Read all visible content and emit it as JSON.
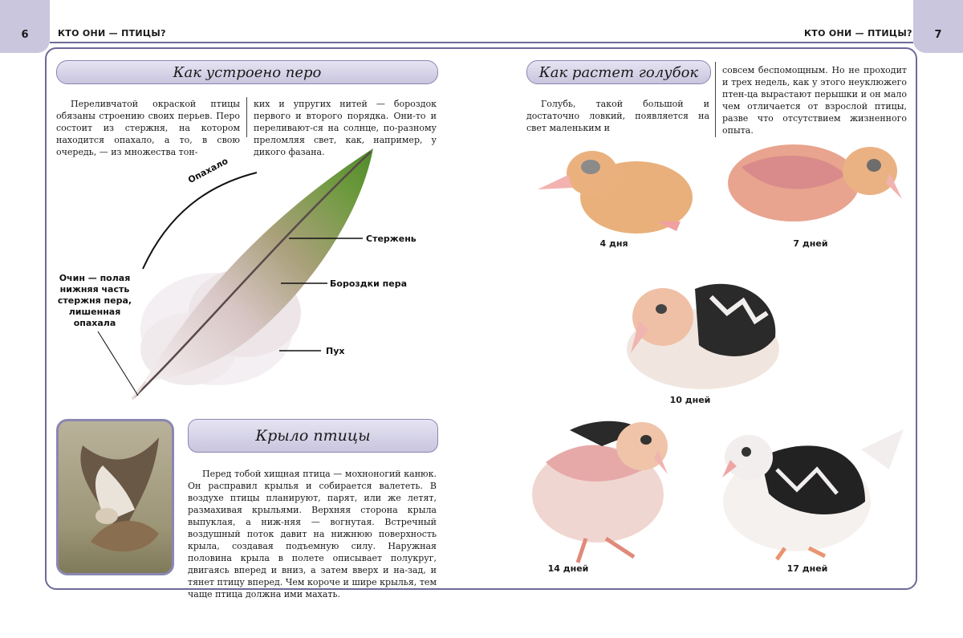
{
  "header": {
    "left_page_number": "6",
    "right_page_number": "7",
    "left_running_title": "КТО ОНИ — ПТИЦЫ?",
    "right_running_title": "КТО ОНИ — ПТИЦЫ?"
  },
  "feather_section": {
    "title": "Как устроено перо",
    "col1": "Переливчатой окраской птицы обязаны строению своих перьев. Перо состоит из стержня, на котором находится опахало, а то, в свою очередь, — из множества тон-",
    "col2": "ких и упругих нитей — бороздок первого и второго порядка. Они-то и переливают-ся на солнце, по-разному преломляя свет, как, например, у дикого фазана.",
    "labels": {
      "vane": "Опахало",
      "shaft": "Стержень",
      "barbs": "Бороздки пера",
      "down": "Пух",
      "calamus_1": "Очин — полая",
      "calamus_2": "нижняя часть",
      "calamus_3": "стержня пера,",
      "calamus_4": "лишенная",
      "calamus_5": "опахала"
    }
  },
  "wing_section": {
    "title": "Крыло птицы",
    "text": "Перед тобой хищная птица — мохноногий канюк. Он расправил крылья и собирается валететь. В воздухе птицы планируют, парят, или же летят, размахивая крыльями. Верхняя сторона крыла выпуклая, а ниж-няя — вогнутая. Встречный воздушный поток давит на нижнюю поверхность крыла, создавая подъемную силу. Наружная половина крыла в полете описывает полукруг, двигаясь вперед и вниз, а затем вверх и на-зад, и тянет птицу вперед. Чем короче и шире крылья, тем чаще птица должна ими махать."
  },
  "pigeon_section": {
    "title": "Как растет голубок",
    "col1": "Голубь, такой большой и достаточно ловкий, появляется на свет маленьким и",
    "col2": "совсем беспомощным. Но не проходит и трех недель, как у этого неуклюжего птен-ца вырастают перышки и он мало чем отличается от взрослой птицы, разве что отсутствием жизненного опыта.",
    "captions": {
      "day4": "4 дня",
      "day7": "7 дней",
      "day10": "10 дней",
      "day14": "14 дней",
      "day17": "17 дней"
    }
  },
  "colors": {
    "accent": "#6d6a99",
    "tab": "#c9c6de",
    "title_fill": "#d8d6ea"
  }
}
